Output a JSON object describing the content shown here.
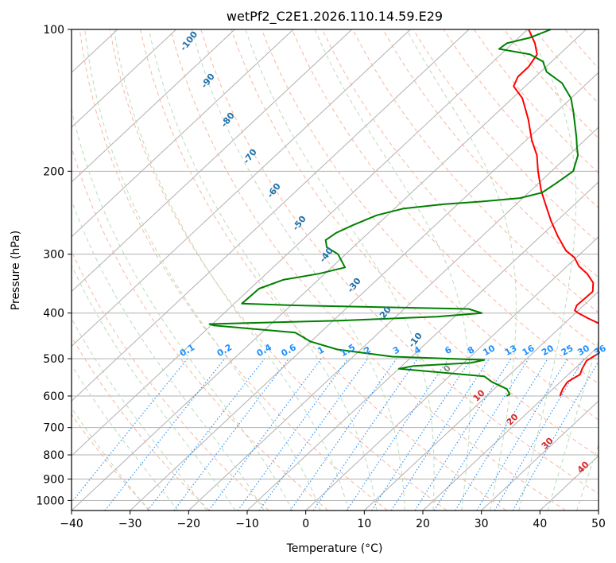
{
  "chart_data": {
    "type": "line",
    "diagram": "skew-T log-p",
    "title": "wetPf2_C2E1.2026.110.14.59.E29",
    "xlabel": "Temperature (°C)",
    "ylabel": "Pressure (hPa)",
    "xlim": [
      -40,
      50
    ],
    "ylim": [
      1050,
      100
    ],
    "x_ticks": [
      -40,
      -30,
      -20,
      -10,
      0,
      10,
      20,
      30,
      40,
      50
    ],
    "x_tick_labels": [
      "−40",
      "−30",
      "−20",
      "−10",
      "0",
      "10",
      "20",
      "30",
      "40",
      "50"
    ],
    "y_ticks": [
      100,
      200,
      300,
      400,
      500,
      600,
      700,
      800,
      900,
      1000
    ],
    "y_tick_labels": [
      "100",
      "200",
      "300",
      "400",
      "500",
      "600",
      "700",
      "800",
      "900",
      "1000"
    ],
    "grid": true,
    "series": [
      {
        "name": "Temperature",
        "color": "#ff0000",
        "points": [
          [
            600,
            22.5
          ],
          [
            580,
            21.7
          ],
          [
            560,
            21.2
          ],
          [
            540,
            22.0
          ],
          [
            525,
            21.3
          ],
          [
            505,
            20.6
          ],
          [
            480,
            21.6
          ],
          [
            460,
            20.3
          ],
          [
            440,
            19.8
          ],
          [
            425,
            17.0
          ],
          [
            410,
            13.0
          ],
          [
            400,
            10.5
          ],
          [
            395,
            9.4
          ],
          [
            385,
            8.8
          ],
          [
            375,
            8.9
          ],
          [
            360,
            9.0
          ],
          [
            345,
            7.5
          ],
          [
            330,
            4.8
          ],
          [
            318,
            2.0
          ],
          [
            305,
            -0.3
          ],
          [
            295,
            -3.0
          ],
          [
            275,
            -7.0
          ],
          [
            255,
            -11.0
          ],
          [
            235,
            -15.0
          ],
          [
            220,
            -18.2
          ],
          [
            200,
            -22.3
          ],
          [
            185,
            -25.4
          ],
          [
            172,
            -29.0
          ],
          [
            155,
            -33.5
          ],
          [
            140,
            -38.3
          ],
          [
            132,
            -42.0
          ],
          [
            126,
            -43.0
          ],
          [
            120,
            -43.0
          ],
          [
            113,
            -43.8
          ],
          [
            107,
            -46.2
          ],
          [
            100,
            -49.8
          ]
        ]
      },
      {
        "name": "Dewpoint",
        "color": "#008000",
        "points": [
          [
            600,
            13.4
          ],
          [
            595,
            13.6
          ],
          [
            580,
            12.2
          ],
          [
            560,
            8.3
          ],
          [
            545,
            6.0
          ],
          [
            525,
            -10.0
          ],
          [
            518,
            -8.0
          ],
          [
            510,
            1.3
          ],
          [
            503,
            3.0
          ],
          [
            495,
            -13.3
          ],
          [
            478,
            -24.0
          ],
          [
            460,
            -30.0
          ],
          [
            440,
            -34.3
          ],
          [
            425,
            -49.5
          ],
          [
            422,
            -50.5
          ],
          [
            415,
            -29.0
          ],
          [
            407,
            -13.0
          ],
          [
            400,
            -6.0
          ],
          [
            392,
            -9.0
          ],
          [
            385,
            -40.0
          ],
          [
            382,
            -48.7
          ],
          [
            355,
            -48.5
          ],
          [
            340,
            -46.0
          ],
          [
            330,
            -41.0
          ],
          [
            320,
            -37.7
          ],
          [
            300,
            -41.3
          ],
          [
            290,
            -44.5
          ],
          [
            280,
            -46.0
          ],
          [
            270,
            -45.5
          ],
          [
            260,
            -44.0
          ],
          [
            248,
            -41.8
          ],
          [
            240,
            -38.5
          ],
          [
            235,
            -32.3
          ],
          [
            232,
            -26.5
          ],
          [
            228,
            -20.5
          ],
          [
            222,
            -17.7
          ],
          [
            212,
            -17.0
          ],
          [
            200,
            -16.3
          ],
          [
            185,
            -18.4
          ],
          [
            178,
            -20.0
          ],
          [
            170,
            -21.8
          ],
          [
            150,
            -27.0
          ],
          [
            140,
            -30.0
          ],
          [
            130,
            -34.3
          ],
          [
            123,
            -39.0
          ],
          [
            117,
            -41.5
          ],
          [
            113,
            -45.0
          ],
          [
            110,
            -51.3
          ],
          [
            107,
            -51.0
          ],
          [
            104,
            -48.0
          ],
          [
            100,
            -46.0
          ]
        ]
      }
    ],
    "dry_adiabat_labels": [
      "-100",
      "-90",
      "-80",
      "-70",
      "-60",
      "-50",
      "-40",
      "-30",
      "-20",
      "-10"
    ],
    "mixing_ratio_labels": [
      "0.1",
      "0.2",
      "0.4",
      "0.6",
      "1",
      "1.5",
      "2",
      "3",
      "4",
      "6",
      "8",
      "10",
      "13",
      "16",
      "20",
      "25",
      "30",
      "36"
    ],
    "moist_adiabat_labels": [
      "0",
      "10",
      "20",
      "30",
      "40"
    ],
    "colors": {
      "temperature": "#ff0000",
      "dewpoint": "#008000",
      "isotherm": "#b0b0b0",
      "isobar": "#b0b0b0",
      "dry_adiabat": "#f7b6a0",
      "moist_adiabat": "#b8dcb8",
      "mixing_ratio": "#1e90ff",
      "dry_adiabat_label": "#1f6fa8",
      "moist_adiabat_label": "#d62728"
    }
  }
}
